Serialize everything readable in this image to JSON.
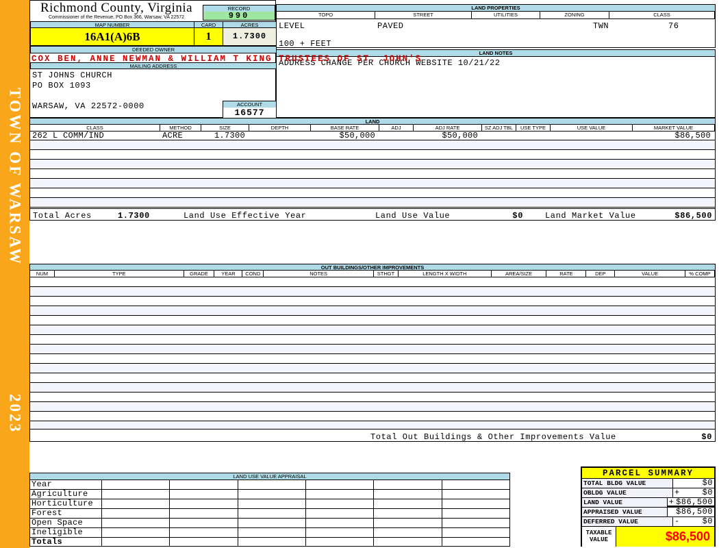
{
  "sidebar": {
    "town_label": "TOWN OF WARSAW",
    "year": "2023"
  },
  "header": {
    "county_title": "Richmond County, Virginia",
    "county_subtitle": "Commissioner of the Revenue, PO Box 366, Warsaw, VA 22572",
    "record_label": "RECORD",
    "record_value": "990",
    "map_number_label": "MAP NUMBER",
    "map_number_value": "16A1(A)6B",
    "card_label": "CARD",
    "card_value": "1",
    "acres_label": "ACRES",
    "acres_value": "1.7300",
    "deeded_owner_label": "DEEDED OWNER",
    "deeded_owner_value": "COX BEN, ANNE NEWMAN & WILLIAM T KING TRUSTEES OF ST. JOHN'S",
    "mailing_address_label": "MAILING ADDRESS",
    "mailing_lines": [
      "ST JOHNS CHURCH",
      "PO BOX 1093",
      "WARSAW, VA 22572-0000"
    ],
    "account_label": "ACCOUNT",
    "account_value": "16577"
  },
  "land_properties": {
    "title": "LAND PROPERTIES",
    "columns": [
      "TOPO",
      "STREET",
      "UTILITIES",
      "ZONING",
      "CLASS"
    ],
    "values": {
      "topo": "LEVEL",
      "street": "PAVED",
      "utilities": "",
      "zoning": "TWN",
      "class": "76"
    },
    "frontage_note": "100 + FEET"
  },
  "land_notes": {
    "title": "LAND NOTES",
    "note": "ADDRESS CHANGE PER CHURCH WEBSITE 10/21/22"
  },
  "land": {
    "title": "LAND",
    "columns": [
      "CLASS",
      "METHOD",
      "SIZE",
      "DEPTH",
      "BASE RATE",
      "ADJ",
      "ADJ RATE",
      "SZ ADJ TBL",
      "USE TYPE",
      "USE VALUE",
      "MARKET VALUE"
    ],
    "rows": [
      [
        "262 L COMM/IND",
        "ACRE",
        "1.7300",
        "",
        "$50,000",
        "",
        "$50,000",
        "",
        "",
        "",
        "$86,500"
      ]
    ],
    "totals": {
      "total_acres_label": "Total Acres",
      "total_acres": "1.7300",
      "effective_year_label": "Land Use Effective Year",
      "use_value_label": "Land Use Value",
      "use_value": "$0",
      "market_value_label": "Land Market Value",
      "market_value": "$86,500"
    }
  },
  "out_buildings": {
    "title": "OUT BUILDINGS/OTHER IMPROVEMENTS",
    "columns": [
      "NUM",
      "TYPE",
      "GRADE",
      "YEAR",
      "COND",
      "NOTES",
      "STHGT",
      "LENGTH X WIDTH",
      "AREA/SIZE",
      "RATE",
      "DEP",
      "VALUE",
      "% COMP"
    ],
    "total_label": "Total Out Buildings & Other Improvements Value",
    "total_value": "$0"
  },
  "land_use_appraisal": {
    "title": "LAND USE VALUE APPRAISAL",
    "row_labels": [
      "Year",
      "Agriculture",
      "Horticulture",
      "Forest",
      "Open Space",
      "Ineligible",
      "Totals"
    ]
  },
  "parcel_summary": {
    "title": "PARCEL SUMMARY",
    "rows": [
      {
        "label": "TOTAL BLDG VALUE",
        "op": "",
        "value": "$0"
      },
      {
        "label": "OBLDG VALUE",
        "op": "+",
        "value": "$0"
      },
      {
        "label": "LAND VALUE",
        "op": "+",
        "value": "$86,500"
      },
      {
        "label": "APPRAISED VALUE",
        "op": "",
        "value": "$86,500"
      },
      {
        "label": "DEFERRED VALUE",
        "op": "-",
        "value": "$0"
      }
    ],
    "taxable_label": "TAXABLE VALUE",
    "taxable_value": "$86,500"
  },
  "colors": {
    "sidebar_orange": "#FAA61A",
    "section_header_blue": "#AEDBE7",
    "record_green": "#9FE6A0",
    "highlight_yellow": "#FFFF00",
    "owner_red": "#CC0000",
    "taxable_red": "#FF0000",
    "stripe_lavender": "#F4F4FB"
  }
}
